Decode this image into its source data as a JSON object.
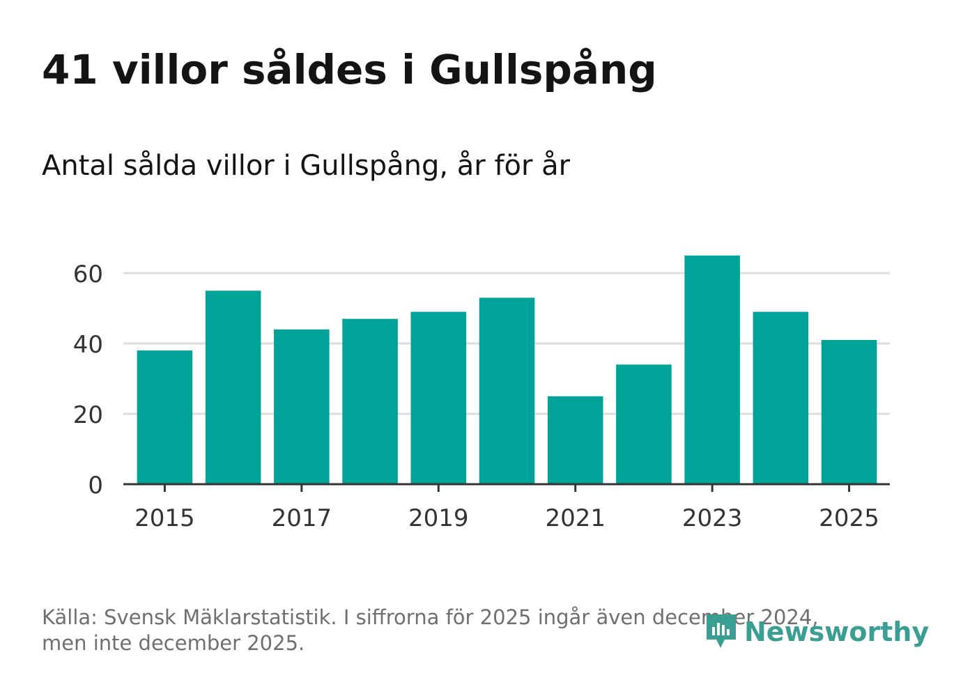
{
  "header": {
    "title": "41 villor såldes i Gullspång",
    "subtitle": "Antal sålda villor i Gullspång, år för år"
  },
  "footer": {
    "source_line1": "Källa: Svensk Mäklarstatistik. I siffrorna för 2025 ingår även december 2024,",
    "source_line2": "men inte december 2025.",
    "logo_text": "Newsworthy",
    "logo_icon": "newsworthy-logo-icon"
  },
  "colors": {
    "bar": "#00a398",
    "grid": "#dddddd",
    "axis": "#333333",
    "logo": "#3a9e93"
  },
  "chart_data": {
    "type": "bar",
    "title": "41 villor såldes i Gullspång",
    "subtitle": "Antal sålda villor i Gullspång, år för år",
    "xlabel": "",
    "ylabel": "",
    "categories": [
      2015,
      2016,
      2017,
      2018,
      2019,
      2020,
      2021,
      2022,
      2023,
      2024,
      2025
    ],
    "values": [
      38,
      55,
      44,
      47,
      49,
      53,
      25,
      34,
      65,
      49,
      41
    ],
    "x_ticks": [
      2015,
      2017,
      2019,
      2021,
      2023,
      2025
    ],
    "y_ticks": [
      0,
      20,
      40,
      60
    ],
    "ylim": [
      0,
      65
    ],
    "grid": true
  }
}
